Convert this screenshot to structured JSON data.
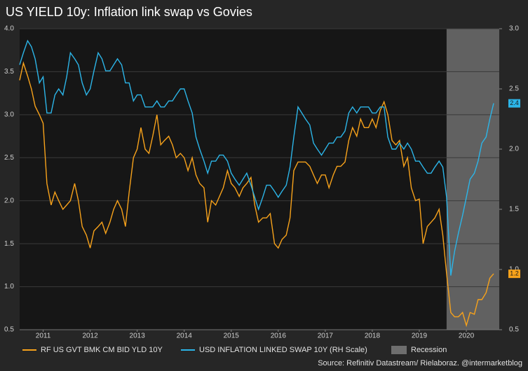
{
  "chart_data": {
    "type": "line",
    "title": "US YIELD 10y: Inflation link swap vs Govies",
    "source": "Source: Refinitiv Datastream/ Rielaboraz. @intermarketblog",
    "xlim": [
      2011,
      2021.2
    ],
    "xticks": [
      {
        "value": 2011.5,
        "label": "2011"
      },
      {
        "value": 2012.5,
        "label": "2012"
      },
      {
        "value": 2013.5,
        "label": "2013"
      },
      {
        "value": 2014.5,
        "label": "2014"
      },
      {
        "value": 2015.5,
        "label": "2015"
      },
      {
        "value": 2016.5,
        "label": "2016"
      },
      {
        "value": 2017.5,
        "label": "2017"
      },
      {
        "value": 2018.5,
        "label": "2018"
      },
      {
        "value": 2019.5,
        "label": "2019"
      },
      {
        "value": 2020.5,
        "label": "2020"
      }
    ],
    "ylim": [
      0.5,
      4
    ],
    "yticks": [
      0.5,
      {
        "value": 1,
        "label": "1.0"
      },
      1.5,
      {
        "value": 2,
        "label": "2.0"
      },
      2.5,
      {
        "value": 3,
        "label": "3.0"
      },
      3.5,
      {
        "value": 4,
        "label": "4.0"
      }
    ],
    "y2lim": [
      0.5,
      3
    ],
    "y2ticks": [
      0.5,
      {
        "value": 1,
        "label": "1.0"
      },
      1.5,
      {
        "value": 2,
        "label": "2.0"
      },
      2.5,
      {
        "value": 3,
        "label": "3.0"
      }
    ],
    "grid": true,
    "recession": {
      "name": "Recession",
      "color": "#6e6e6e",
      "x": [
        2020.08,
        2021.2
      ]
    },
    "x": [
      2011.0,
      2011.08,
      2011.17,
      2011.25,
      2011.33,
      2011.42,
      2011.5,
      2011.58,
      2011.67,
      2011.75,
      2011.83,
      2011.92,
      2012.0,
      2012.08,
      2012.17,
      2012.25,
      2012.33,
      2012.42,
      2012.5,
      2012.58,
      2012.67,
      2012.75,
      2012.83,
      2012.92,
      2013.0,
      2013.08,
      2013.17,
      2013.25,
      2013.33,
      2013.42,
      2013.5,
      2013.58,
      2013.67,
      2013.75,
      2013.83,
      2013.92,
      2014.0,
      2014.08,
      2014.17,
      2014.25,
      2014.33,
      2014.42,
      2014.5,
      2014.58,
      2014.67,
      2014.75,
      2014.83,
      2014.92,
      2015.0,
      2015.08,
      2015.17,
      2015.25,
      2015.33,
      2015.42,
      2015.5,
      2015.58,
      2015.67,
      2015.75,
      2015.83,
      2015.92,
      2016.0,
      2016.08,
      2016.17,
      2016.25,
      2016.33,
      2016.42,
      2016.5,
      2016.58,
      2016.67,
      2016.75,
      2016.83,
      2016.92,
      2017.0,
      2017.08,
      2017.17,
      2017.25,
      2017.33,
      2017.42,
      2017.5,
      2017.58,
      2017.67,
      2017.75,
      2017.83,
      2017.92,
      2018.0,
      2018.08,
      2018.17,
      2018.25,
      2018.33,
      2018.42,
      2018.5,
      2018.58,
      2018.67,
      2018.75,
      2018.83,
      2018.92,
      2019.0,
      2019.08,
      2019.17,
      2019.25,
      2019.33,
      2019.42,
      2019.5,
      2019.58,
      2019.67,
      2019.75,
      2019.83,
      2019.92,
      2020.0,
      2020.08,
      2020.17,
      2020.25,
      2020.33,
      2020.42,
      2020.5,
      2020.58,
      2020.67,
      2020.75,
      2020.83,
      2020.92,
      2021.0,
      2021.08
    ],
    "series": [
      {
        "name": "RF US GVT BMK CM BID YLD 10Y",
        "color": "#f7a21b",
        "end_label": "1.2",
        "values": [
          3.4,
          3.6,
          3.45,
          3.3,
          3.1,
          3.0,
          2.9,
          2.2,
          1.95,
          2.1,
          2.0,
          1.9,
          1.95,
          2.0,
          2.2,
          2.0,
          1.7,
          1.6,
          1.45,
          1.65,
          1.7,
          1.75,
          1.62,
          1.75,
          1.9,
          2.0,
          1.9,
          1.7,
          2.1,
          2.5,
          2.6,
          2.85,
          2.6,
          2.55,
          2.75,
          3.0,
          2.65,
          2.7,
          2.75,
          2.65,
          2.5,
          2.55,
          2.5,
          2.35,
          2.5,
          2.3,
          2.2,
          2.15,
          1.75,
          2.0,
          1.95,
          2.05,
          2.15,
          2.35,
          2.2,
          2.15,
          2.05,
          2.15,
          2.2,
          2.27,
          1.95,
          1.75,
          1.8,
          1.8,
          1.85,
          1.5,
          1.45,
          1.55,
          1.6,
          1.8,
          2.35,
          2.45,
          2.45,
          2.45,
          2.4,
          2.3,
          2.2,
          2.3,
          2.3,
          2.15,
          2.3,
          2.4,
          2.4,
          2.45,
          2.7,
          2.85,
          2.75,
          2.95,
          2.85,
          2.85,
          2.95,
          2.85,
          3.05,
          3.15,
          3.0,
          2.7,
          2.65,
          2.7,
          2.4,
          2.5,
          2.15,
          2.0,
          2.02,
          1.5,
          1.7,
          1.75,
          1.8,
          1.9,
          1.6,
          1.15,
          0.7,
          0.65,
          0.65,
          0.7,
          0.55,
          0.7,
          0.68,
          0.85,
          0.85,
          0.93,
          1.1,
          1.15
        ]
      },
      {
        "name": "USD INFLATION LINKED SWAP 10Y (RH Scale)",
        "color": "#2cb5e8",
        "axis": "y2",
        "end_label": "2.4",
        "values": [
          2.7,
          2.8,
          2.9,
          2.85,
          2.75,
          2.55,
          2.6,
          2.3,
          2.3,
          2.45,
          2.5,
          2.45,
          2.6,
          2.8,
          2.75,
          2.7,
          2.55,
          2.45,
          2.5,
          2.65,
          2.8,
          2.75,
          2.65,
          2.65,
          2.7,
          2.75,
          2.7,
          2.55,
          2.55,
          2.4,
          2.45,
          2.45,
          2.35,
          2.35,
          2.35,
          2.4,
          2.35,
          2.35,
          2.4,
          2.4,
          2.45,
          2.5,
          2.5,
          2.4,
          2.3,
          2.1,
          2.0,
          1.9,
          1.8,
          1.9,
          1.9,
          1.95,
          1.95,
          1.9,
          1.8,
          1.75,
          1.7,
          1.75,
          1.8,
          1.7,
          1.6,
          1.5,
          1.6,
          1.7,
          1.7,
          1.65,
          1.6,
          1.65,
          1.7,
          1.85,
          2.1,
          2.35,
          2.3,
          2.25,
          2.2,
          2.05,
          2.0,
          1.95,
          2.0,
          2.05,
          2.05,
          2.1,
          2.1,
          2.15,
          2.3,
          2.35,
          2.3,
          2.35,
          2.35,
          2.35,
          2.3,
          2.3,
          2.35,
          2.35,
          2.1,
          2.0,
          2.0,
          2.05,
          2.0,
          2.05,
          2.0,
          1.9,
          1.9,
          1.85,
          1.8,
          1.8,
          1.85,
          1.9,
          1.85,
          1.6,
          0.95,
          1.15,
          1.3,
          1.45,
          1.6,
          1.75,
          1.8,
          1.9,
          2.05,
          2.1,
          2.25,
          2.38
        ]
      }
    ]
  }
}
